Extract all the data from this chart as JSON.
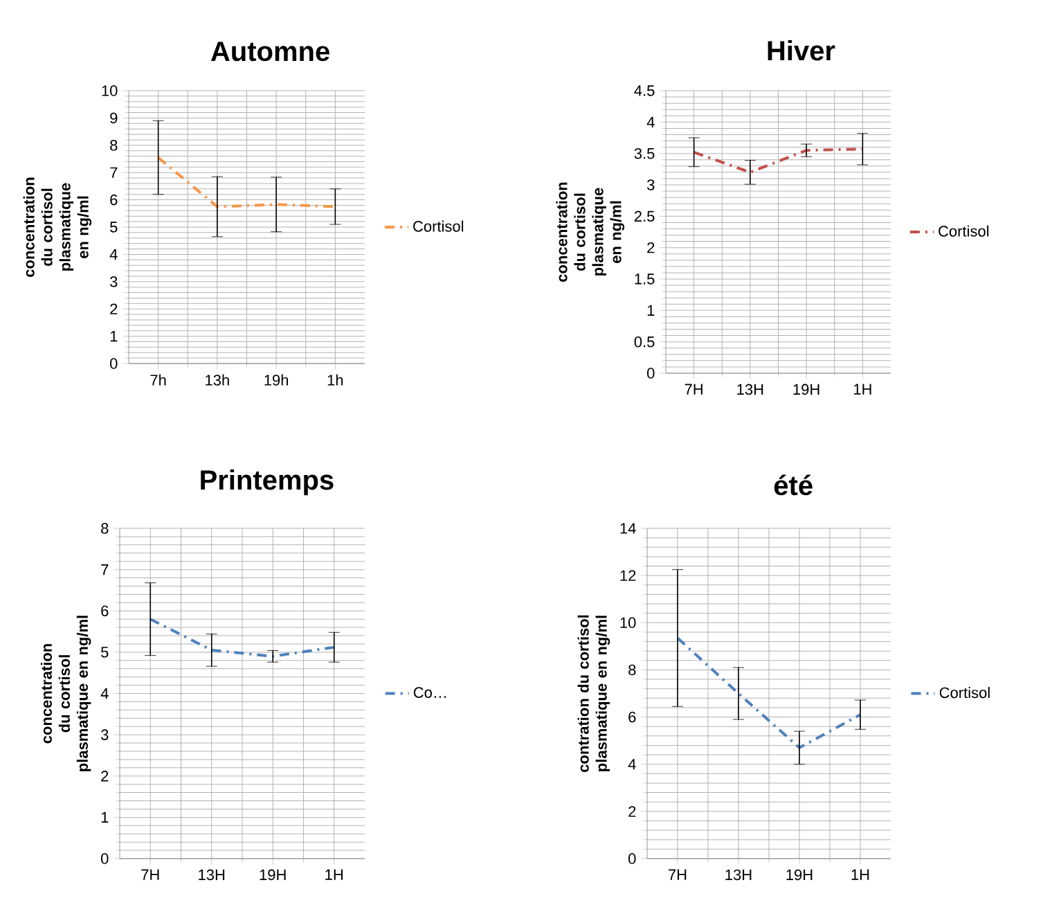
{
  "chart_data": [
    {
      "type": "line",
      "title": "Automne",
      "ylabel": "concentration du cortisol plasmatique en ng/ml",
      "categories": [
        "7h",
        "13h",
        "19h",
        "1h"
      ],
      "series": [
        {
          "name": "Cortisol",
          "color": "#f79646",
          "values": [
            7.55,
            5.75,
            5.83,
            5.75
          ],
          "errors": [
            1.35,
            1.1,
            1.0,
            0.65
          ]
        }
      ],
      "ylim": [
        0,
        10
      ],
      "yticks": [
        0,
        1,
        2,
        3,
        4,
        5,
        6,
        7,
        8,
        9,
        10
      ],
      "grid": true,
      "legend": "right",
      "line_style": "dashed"
    },
    {
      "type": "line",
      "title": "Hiver",
      "ylabel": "concentration du cortisol plasmatique en ng/ml",
      "categories": [
        "7H",
        "13H",
        "19H",
        "1H"
      ],
      "series": [
        {
          "name": "Cortisol",
          "color": "#c0504d",
          "values": [
            3.52,
            3.2,
            3.55,
            3.57
          ],
          "errors": [
            0.23,
            0.19,
            0.1,
            0.25
          ]
        }
      ],
      "ylim": [
        0,
        4.5
      ],
      "yticks": [
        0,
        0.5,
        1,
        1.5,
        2,
        2.5,
        3,
        3.5,
        4,
        4.5
      ],
      "grid": true,
      "legend": "right",
      "line_style": "dashed"
    },
    {
      "type": "line",
      "title": "Printemps",
      "ylabel": "concentration du cortisol plasmatique en ng/ml",
      "categories": [
        "7H",
        "13H",
        "19H",
        "1H"
      ],
      "series": [
        {
          "name": "Co…",
          "color": "#4f81bd",
          "values": [
            5.8,
            5.05,
            4.9,
            5.12
          ],
          "errors": [
            0.88,
            0.39,
            0.14,
            0.36
          ]
        }
      ],
      "ylim": [
        0,
        8
      ],
      "yticks": [
        0,
        1,
        2,
        3,
        4,
        5,
        6,
        7,
        8
      ],
      "grid": true,
      "legend": "right",
      "line_style": "dashed"
    },
    {
      "type": "line",
      "title": "été",
      "ylabel": "contration du cortisol plasmatique en ng/ml",
      "categories": [
        "7H",
        "13H",
        "19H",
        "1H"
      ],
      "series": [
        {
          "name": "Cortisol",
          "color": "#4f81bd",
          "values": [
            9.35,
            7.0,
            4.7,
            6.1
          ],
          "errors": [
            2.9,
            1.1,
            0.7,
            0.62
          ]
        }
      ],
      "ylim": [
        0,
        14
      ],
      "yticks": [
        0,
        2,
        4,
        6,
        8,
        10,
        12,
        14
      ],
      "grid": true,
      "legend": "right",
      "line_style": "dashed"
    }
  ]
}
